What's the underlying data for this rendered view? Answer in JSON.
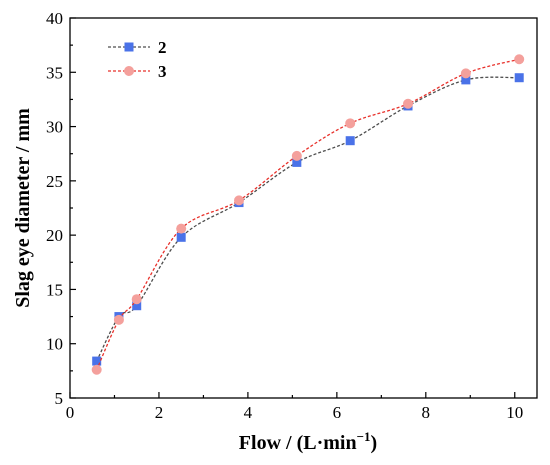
{
  "chart_data": {
    "type": "line",
    "xlabel": "Flow / (L·min",
    "xlabel_sup": "−1",
    "xlabel_close": ")",
    "ylabel": "Slag eye diameter / mm",
    "xlim": [
      0,
      10.5
    ],
    "ylim": [
      5,
      40
    ],
    "xticks": [
      0,
      2,
      4,
      6,
      8,
      10
    ],
    "yticks": [
      5,
      10,
      15,
      20,
      25,
      30,
      35,
      40
    ],
    "grid": false,
    "legend_position": "top-left",
    "series": [
      {
        "name": "2",
        "marker": "square",
        "color": "#4a72e8",
        "line_color": "#4d4d4d",
        "x": [
          0.6,
          1.1,
          1.5,
          2.5,
          3.8,
          5.1,
          6.3,
          7.6,
          8.9,
          10.1
        ],
        "y": [
          8.4,
          12.5,
          13.5,
          19.8,
          23.0,
          26.7,
          28.7,
          31.9,
          34.3,
          34.5
        ]
      },
      {
        "name": "3",
        "marker": "circle",
        "color": "#f4a09c",
        "line_color": "#e8302a",
        "x": [
          0.6,
          1.1,
          1.5,
          2.5,
          3.8,
          5.1,
          6.3,
          7.6,
          8.9,
          10.1
        ],
        "y": [
          7.6,
          12.2,
          14.1,
          20.6,
          23.2,
          27.3,
          30.3,
          32.1,
          34.9,
          36.2
        ]
      }
    ]
  }
}
